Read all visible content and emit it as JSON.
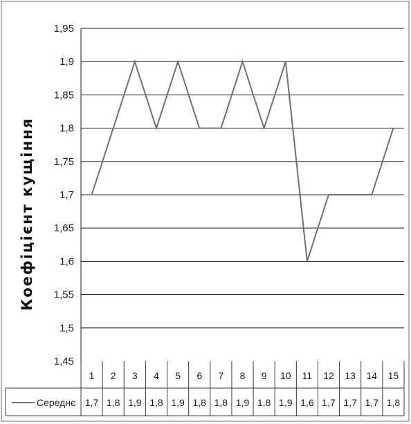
{
  "chart_data": {
    "type": "line",
    "title": "",
    "xlabel": "",
    "ylabel": "Коефіцієнт кущіння",
    "ylim": [
      1.45,
      1.95
    ],
    "yticks": [
      "1,45",
      "1,5",
      "1,55",
      "1,6",
      "1,65",
      "1,7",
      "1,75",
      "1,8",
      "1,85",
      "1,9",
      "1,95"
    ],
    "grid": true,
    "legend": "data-table",
    "categories": [
      "1",
      "2",
      "3",
      "4",
      "5",
      "6",
      "7",
      "8",
      "9",
      "10",
      "11",
      "12",
      "13",
      "14",
      "15"
    ],
    "series": [
      {
        "name": "Середнє",
        "values": [
          1.7,
          1.8,
          1.9,
          1.8,
          1.9,
          1.8,
          1.8,
          1.9,
          1.8,
          1.9,
          1.6,
          1.7,
          1.7,
          1.7,
          1.8
        ],
        "labels": [
          "1,7",
          "1,8",
          "1,9",
          "1,8",
          "1,9",
          "1,8",
          "1,8",
          "1,9",
          "1,8",
          "1,9",
          "1,6",
          "1,7",
          "1,7",
          "1,7",
          "1,8"
        ],
        "color": "#6f6f6f"
      }
    ]
  }
}
